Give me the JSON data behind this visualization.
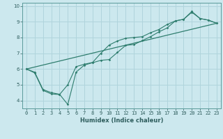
{
  "xlabel": "Humidex (Indice chaleur)",
  "bg_color": "#cce8ee",
  "grid_color": "#b0d4dc",
  "line_color": "#2e7d6e",
  "xlim": [
    -0.5,
    23.5
  ],
  "ylim": [
    3.5,
    10.2
  ],
  "xticks": [
    0,
    1,
    2,
    3,
    4,
    5,
    6,
    7,
    8,
    9,
    10,
    11,
    12,
    13,
    14,
    15,
    16,
    17,
    18,
    19,
    20,
    21,
    22,
    23
  ],
  "yticks": [
    4,
    5,
    6,
    7,
    8,
    9,
    10
  ],
  "series1_x": [
    0,
    1,
    2,
    3,
    4,
    5,
    6,
    7,
    8,
    9,
    10,
    11,
    12,
    13,
    14,
    15,
    16,
    17,
    18,
    19,
    20,
    21,
    22,
    23
  ],
  "series1_y": [
    6.0,
    5.8,
    4.7,
    4.5,
    4.4,
    3.75,
    5.8,
    6.25,
    6.4,
    6.55,
    6.6,
    7.05,
    7.5,
    7.55,
    7.8,
    8.05,
    8.35,
    8.6,
    9.05,
    9.15,
    9.65,
    9.2,
    9.1,
    8.9
  ],
  "series2_x": [
    0,
    1,
    2,
    3,
    4,
    5,
    6,
    7,
    8,
    9,
    10,
    11,
    12,
    13,
    14,
    15,
    16,
    17,
    18,
    19,
    20,
    21,
    22,
    23
  ],
  "series2_y": [
    6.0,
    5.75,
    4.65,
    4.42,
    4.38,
    5.0,
    6.15,
    6.3,
    6.42,
    7.0,
    7.52,
    7.78,
    7.95,
    8.0,
    8.05,
    8.3,
    8.5,
    8.82,
    9.05,
    9.15,
    9.6,
    9.2,
    9.1,
    8.9
  ],
  "series3_x": [
    0,
    23
  ],
  "series3_y": [
    6.0,
    8.9
  ],
  "marker_x": [
    0,
    1,
    2,
    3,
    4,
    5,
    6,
    7,
    8,
    9,
    10,
    11,
    12,
    13,
    14,
    15,
    16,
    17,
    18,
    19,
    20,
    21,
    22,
    23
  ]
}
